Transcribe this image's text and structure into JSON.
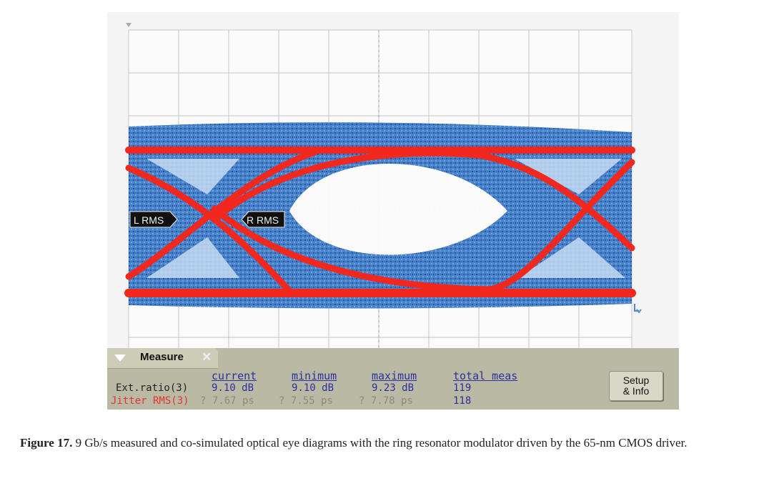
{
  "scope": {
    "markers": {
      "left": "L RMS",
      "right": "R RMS"
    },
    "colors": {
      "measured_eye": "#1f5aa8",
      "simulated_eye": "#f22a22",
      "grid": "#bdbdbd"
    }
  },
  "measure": {
    "title": "Measure",
    "headers": {
      "current": "current",
      "minimum": "minimum",
      "maximum": "maximum",
      "total": "total meas"
    },
    "rows": [
      {
        "label": "Ext.ratio(3)",
        "current": "9.10 dB",
        "minimum": "9.10 dB",
        "maximum": "9.23 dB",
        "total": "119"
      },
      {
        "label": "Jitter RMS(3)",
        "current": "? 7.67 ps",
        "minimum": "? 7.55 ps",
        "maximum": "? 7.78 ps",
        "total": "118"
      }
    ],
    "setup_button": {
      "line1": "Setup",
      "line2": "& Info"
    }
  },
  "caption": {
    "label": "Figure 17.",
    "text": " 9 Gb/s measured and co-simulated optical eye diagrams with the ring resonator modulator driven by the 65-nm CMOS driver."
  }
}
